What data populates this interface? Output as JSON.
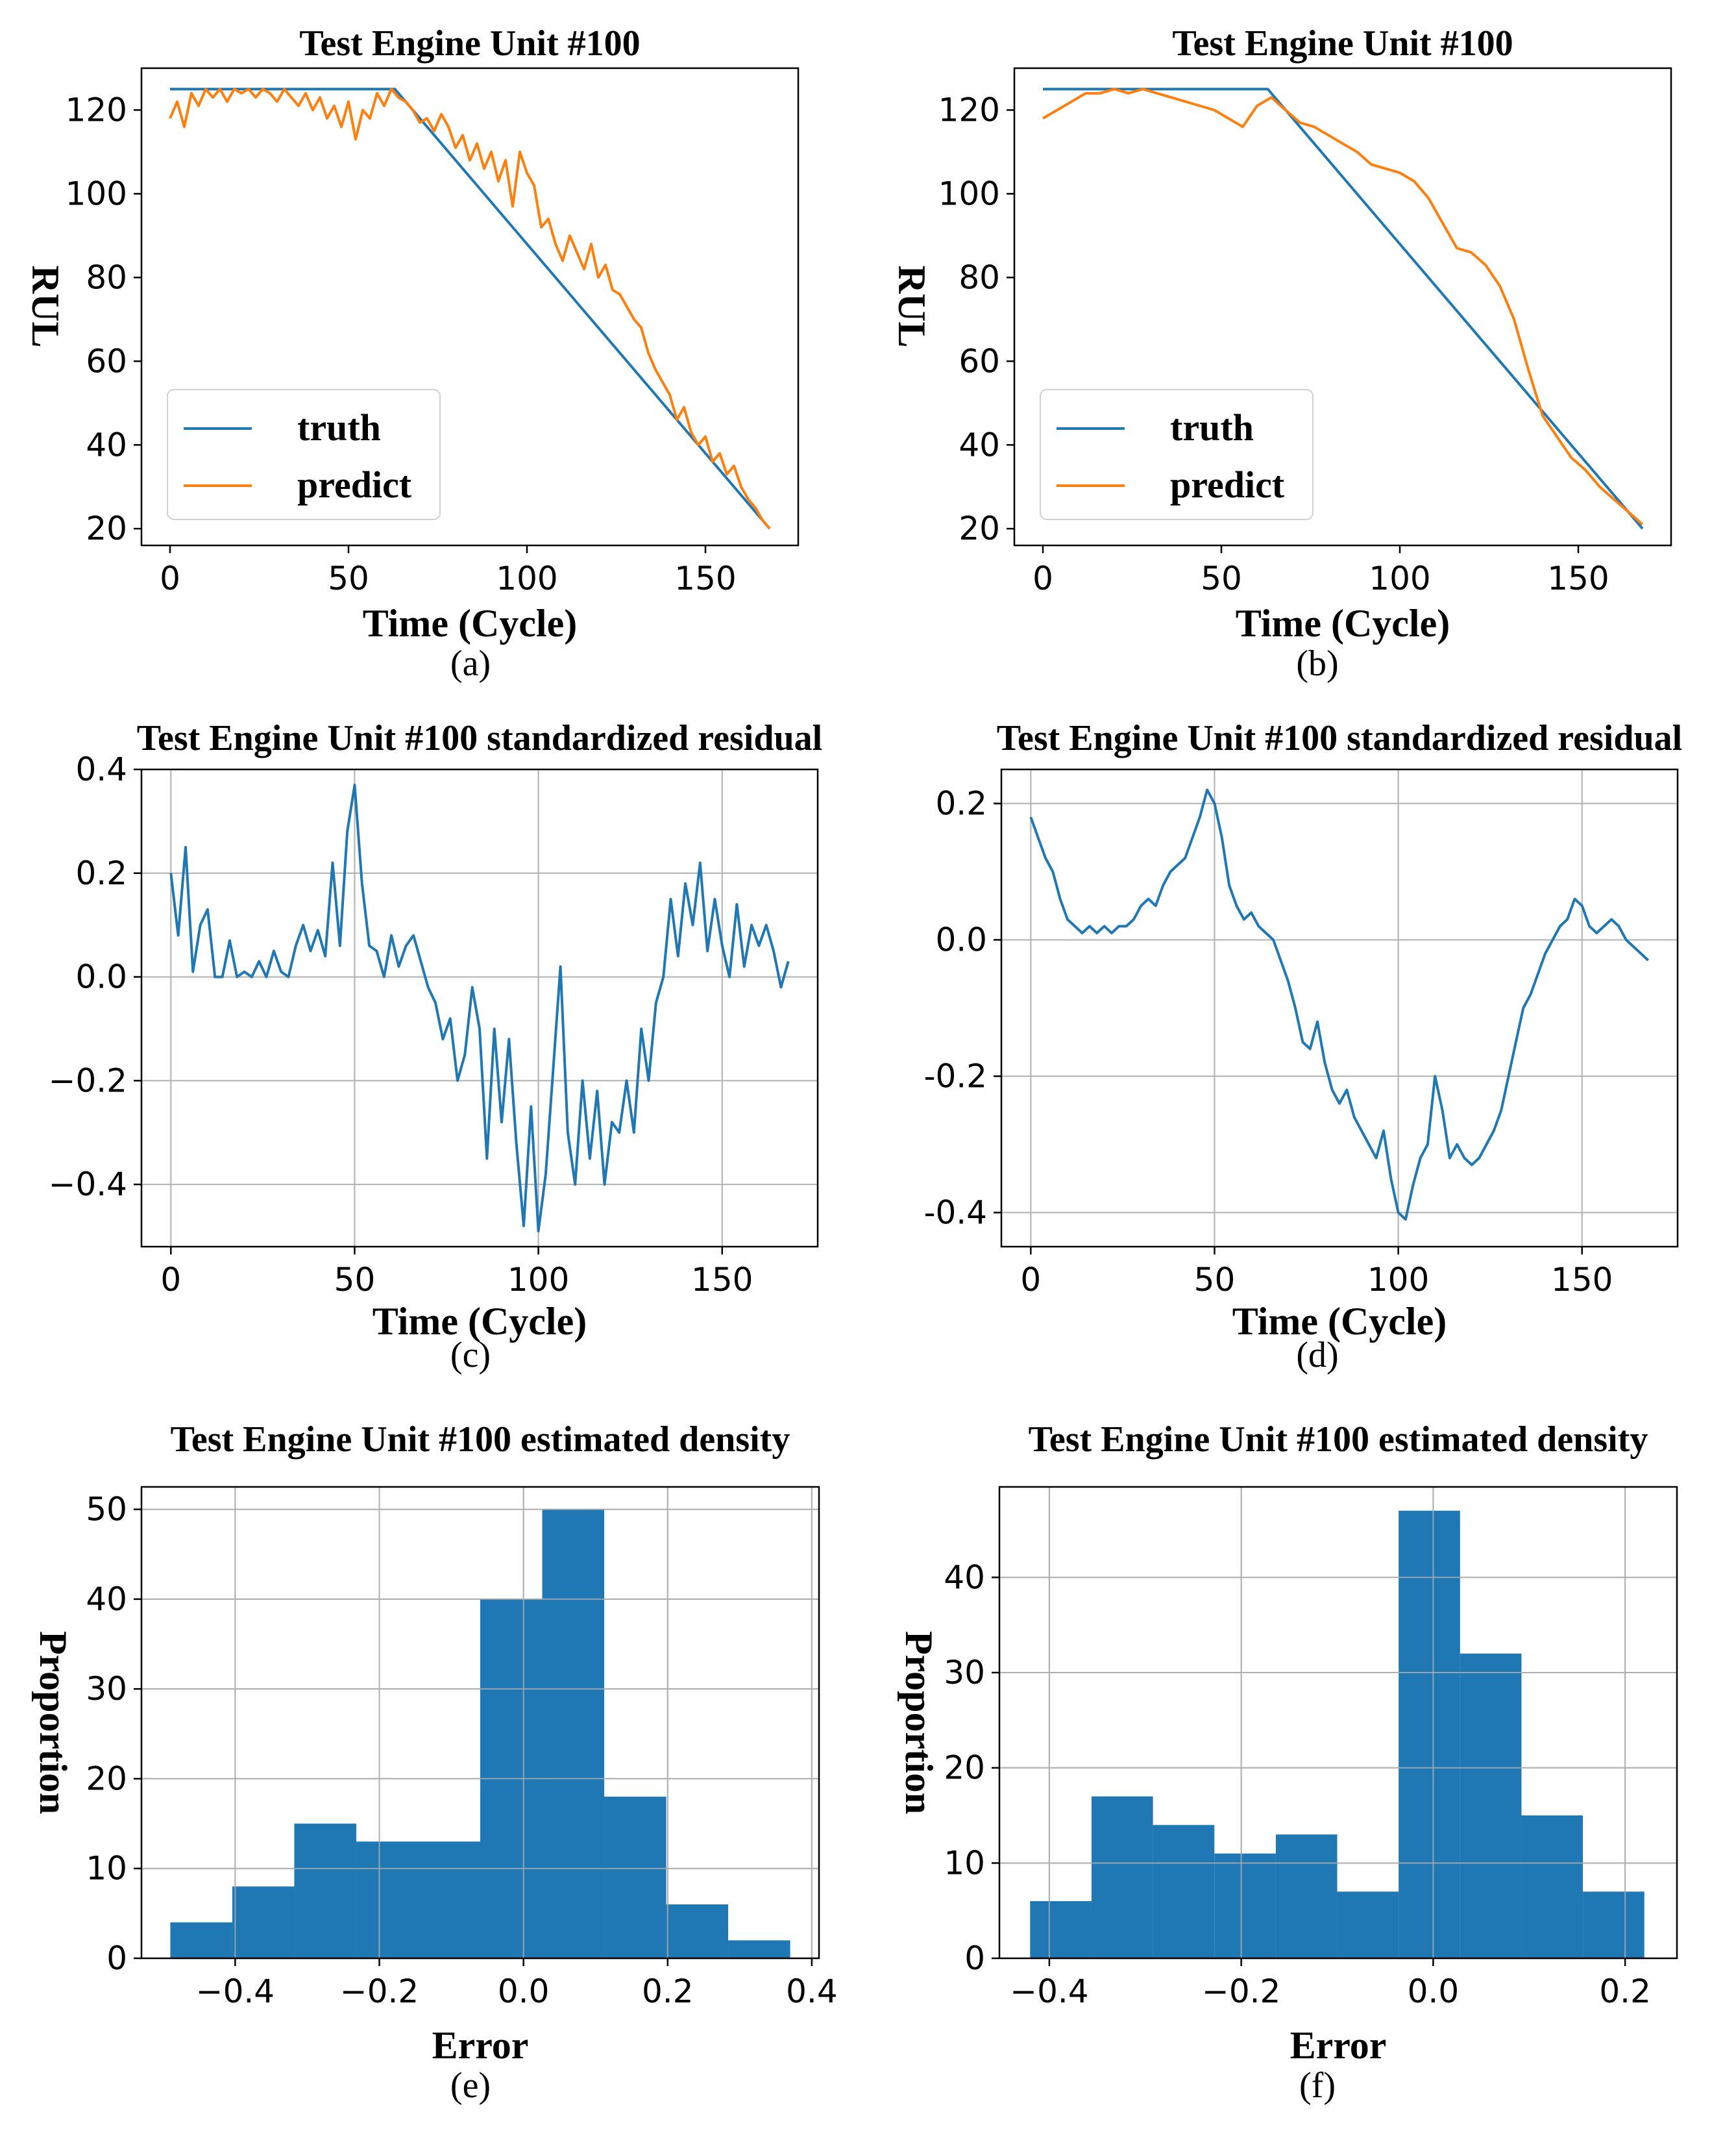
{
  "colors": {
    "truth": "#1f77b4",
    "predict": "#ff7f0e",
    "bar": "#1f77b4",
    "grid": "#b0b0b0",
    "axis": "#000000"
  },
  "chart_data": [
    {
      "id": "a",
      "type": "line",
      "caption": "(a)",
      "title": "Test Engine Unit #100",
      "xlabel": "Time (Cycle)",
      "ylabel": "RUL",
      "xlim": [
        -8,
        176
      ],
      "ylim": [
        16,
        130
      ],
      "grid": false,
      "xticks": [
        0,
        50,
        100,
        150
      ],
      "yticks": [
        20,
        40,
        60,
        80,
        100,
        120
      ],
      "xtick_labels": [
        "0",
        "50",
        "100",
        "150"
      ],
      "ytick_labels": [
        "20",
        "40",
        "60",
        "80",
        "100",
        "120"
      ],
      "legend": {
        "position": "lower-left",
        "entries": [
          "truth",
          "predict"
        ]
      },
      "series": [
        {
          "name": "truth",
          "color": "#1f77b4",
          "x": [
            0,
            63,
            168
          ],
          "y": [
            125,
            125,
            20
          ]
        },
        {
          "name": "predict",
          "color": "#ff7f0e",
          "x": [
            0,
            2,
            4,
            6,
            8,
            10,
            12,
            14,
            16,
            18,
            20,
            22,
            24,
            26,
            28,
            30,
            32,
            34,
            36,
            38,
            40,
            42,
            44,
            46,
            48,
            50,
            52,
            54,
            56,
            58,
            60,
            62,
            64,
            66,
            68,
            70,
            72,
            74,
            76,
            78,
            80,
            82,
            84,
            86,
            88,
            90,
            92,
            94,
            96,
            98,
            100,
            102,
            104,
            106,
            108,
            110,
            112,
            114,
            116,
            118,
            120,
            122,
            124,
            126,
            128,
            130,
            132,
            134,
            136,
            138,
            140,
            142,
            144,
            146,
            148,
            150,
            152,
            154,
            156,
            158,
            160,
            162,
            164,
            166,
            168
          ],
          "y": [
            118,
            122,
            116,
            124,
            121,
            125,
            123,
            125,
            122,
            125,
            124,
            125,
            123,
            125,
            124,
            122,
            125,
            123,
            121,
            124,
            120,
            123,
            118,
            121,
            116,
            122,
            113,
            120,
            118,
            124,
            121,
            125,
            123,
            122,
            120,
            117,
            118,
            115,
            119,
            116,
            111,
            114,
            108,
            112,
            106,
            110,
            103,
            108,
            97,
            110,
            105,
            102,
            92,
            94,
            88,
            84,
            90,
            86,
            82,
            88,
            80,
            83,
            77,
            76,
            73,
            70,
            68,
            62,
            58,
            55,
            52,
            46,
            49,
            43,
            40,
            42,
            36,
            38,
            33,
            35,
            30,
            27,
            25,
            22,
            20
          ]
        }
      ]
    },
    {
      "id": "b",
      "type": "line",
      "caption": "(b)",
      "title": "Test Engine Unit #100",
      "xlabel": "Time (Cycle)",
      "ylabel": "RUL",
      "xlim": [
        -8,
        176
      ],
      "ylim": [
        16,
        130
      ],
      "grid": false,
      "xticks": [
        0,
        50,
        100,
        150
      ],
      "yticks": [
        20,
        40,
        60,
        80,
        100,
        120
      ],
      "xtick_labels": [
        "0",
        "50",
        "100",
        "150"
      ],
      "ytick_labels": [
        "20",
        "40",
        "60",
        "80",
        "100",
        "120"
      ],
      "legend": {
        "position": "lower-left",
        "entries": [
          "truth",
          "predict"
        ]
      },
      "series": [
        {
          "name": "truth",
          "color": "#1f77b4",
          "x": [
            0,
            63,
            168
          ],
          "y": [
            125,
            125,
            20
          ]
        },
        {
          "name": "predict",
          "color": "#ff7f0e",
          "x": [
            0,
            4,
            8,
            12,
            16,
            20,
            24,
            28,
            32,
            36,
            40,
            44,
            48,
            52,
            56,
            60,
            64,
            68,
            72,
            76,
            80,
            84,
            88,
            92,
            96,
            100,
            104,
            108,
            112,
            116,
            120,
            124,
            128,
            132,
            136,
            140,
            144,
            148,
            152,
            156,
            160,
            164,
            168
          ],
          "y": [
            118,
            120,
            122,
            124,
            124,
            125,
            124,
            125,
            124,
            123,
            122,
            121,
            120,
            118,
            116,
            121,
            123,
            120,
            117,
            116,
            114,
            112,
            110,
            107,
            106,
            105,
            103,
            99,
            93,
            87,
            86,
            83,
            78,
            70,
            58,
            47,
            42,
            37,
            34,
            30,
            27,
            24,
            21
          ]
        }
      ]
    },
    {
      "id": "c",
      "type": "line",
      "caption": "(c)",
      "title": "Test Engine Unit #100 standardized residual",
      "xlabel": "Time (Cycle)",
      "ylabel": "",
      "xlim": [
        -8,
        176
      ],
      "ylim": [
        -0.52,
        0.4
      ],
      "grid": true,
      "xticks": [
        0,
        50,
        100,
        150
      ],
      "yticks": [
        -0.4,
        -0.2,
        0.0,
        0.2,
        0.4
      ],
      "xtick_labels": [
        "0",
        "50",
        "100",
        "150"
      ],
      "ytick_labels": [
        "−0.4",
        "−0.2",
        "0.0",
        "0.2",
        "0.4"
      ],
      "series": [
        {
          "name": "residual",
          "color": "#1f77b4",
          "x": [
            0,
            2,
            4,
            6,
            8,
            10,
            12,
            14,
            16,
            18,
            20,
            22,
            24,
            26,
            28,
            30,
            32,
            34,
            36,
            38,
            40,
            42,
            44,
            46,
            48,
            50,
            52,
            54,
            56,
            58,
            60,
            62,
            64,
            66,
            68,
            70,
            72,
            74,
            76,
            78,
            80,
            82,
            84,
            86,
            88,
            90,
            92,
            94,
            96,
            98,
            100,
            102,
            104,
            106,
            108,
            110,
            112,
            114,
            116,
            118,
            120,
            122,
            124,
            126,
            128,
            130,
            132,
            134,
            136,
            138,
            140,
            142,
            144,
            146,
            148,
            150,
            152,
            154,
            156,
            158,
            160,
            162,
            164,
            166,
            168
          ],
          "y": [
            0.2,
            0.08,
            0.25,
            0.01,
            0.1,
            0.13,
            0.0,
            0.0,
            0.07,
            0.0,
            0.01,
            0.0,
            0.03,
            0.0,
            0.05,
            0.01,
            0.0,
            0.06,
            0.1,
            0.05,
            0.09,
            0.04,
            0.22,
            0.06,
            0.28,
            0.37,
            0.18,
            0.06,
            0.05,
            0.0,
            0.08,
            0.02,
            0.06,
            0.08,
            0.03,
            -0.02,
            -0.05,
            -0.12,
            -0.08,
            -0.2,
            -0.15,
            -0.02,
            -0.1,
            -0.35,
            -0.1,
            -0.28,
            -0.12,
            -0.32,
            -0.48,
            -0.25,
            -0.49,
            -0.38,
            -0.18,
            0.02,
            -0.3,
            -0.4,
            -0.2,
            -0.35,
            -0.22,
            -0.4,
            -0.28,
            -0.3,
            -0.2,
            -0.3,
            -0.1,
            -0.2,
            -0.05,
            0.0,
            0.15,
            0.04,
            0.18,
            0.1,
            0.22,
            0.05,
            0.15,
            0.06,
            0.0,
            0.14,
            0.02,
            0.1,
            0.06,
            0.1,
            0.05,
            -0.02,
            0.03
          ]
        }
      ]
    },
    {
      "id": "d",
      "type": "line",
      "caption": "(d)",
      "title": "Test Engine Unit #100 standardized residual",
      "xlabel": "Time (Cycle)",
      "ylabel": "",
      "xlim": [
        -8,
        176
      ],
      "ylim": [
        -0.45,
        0.25
      ],
      "grid": true,
      "xticks": [
        0,
        50,
        100,
        150
      ],
      "yticks": [
        -0.4,
        -0.2,
        0.0,
        0.2
      ],
      "xtick_labels": [
        "0",
        "50",
        "100",
        "150"
      ],
      "ytick_labels": [
        "-0.4",
        "-0.2",
        "0.0",
        "0.2"
      ],
      "series": [
        {
          "name": "residual",
          "color": "#1f77b4",
          "x": [
            0,
            2,
            4,
            6,
            8,
            10,
            12,
            14,
            16,
            18,
            20,
            22,
            24,
            26,
            28,
            30,
            32,
            34,
            36,
            38,
            40,
            42,
            44,
            46,
            48,
            50,
            52,
            54,
            56,
            58,
            60,
            62,
            64,
            66,
            68,
            70,
            72,
            74,
            76,
            78,
            80,
            82,
            84,
            86,
            88,
            90,
            92,
            94,
            96,
            98,
            100,
            102,
            104,
            106,
            108,
            110,
            112,
            114,
            116,
            118,
            120,
            122,
            124,
            126,
            128,
            130,
            132,
            134,
            136,
            138,
            140,
            142,
            144,
            146,
            148,
            150,
            152,
            154,
            156,
            158,
            160,
            162,
            164,
            166,
            168
          ],
          "y": [
            0.18,
            0.15,
            0.12,
            0.1,
            0.06,
            0.03,
            0.02,
            0.01,
            0.02,
            0.01,
            0.02,
            0.01,
            0.02,
            0.02,
            0.03,
            0.05,
            0.06,
            0.05,
            0.08,
            0.1,
            0.11,
            0.12,
            0.15,
            0.18,
            0.22,
            0.2,
            0.15,
            0.08,
            0.05,
            0.03,
            0.04,
            0.02,
            0.01,
            0.0,
            -0.03,
            -0.06,
            -0.1,
            -0.15,
            -0.16,
            -0.12,
            -0.18,
            -0.22,
            -0.24,
            -0.22,
            -0.26,
            -0.28,
            -0.3,
            -0.32,
            -0.28,
            -0.35,
            -0.4,
            -0.41,
            -0.36,
            -0.32,
            -0.3,
            -0.2,
            -0.25,
            -0.32,
            -0.3,
            -0.32,
            -0.33,
            -0.32,
            -0.3,
            -0.28,
            -0.25,
            -0.2,
            -0.15,
            -0.1,
            -0.08,
            -0.05,
            -0.02,
            0.0,
            0.02,
            0.03,
            0.06,
            0.05,
            0.02,
            0.01,
            0.02,
            0.03,
            0.02,
            0.0,
            -0.01,
            -0.02,
            -0.03
          ]
        }
      ]
    },
    {
      "id": "e",
      "type": "bar",
      "caption": "(e)",
      "title": "Test Engine Unit #100 estimated density",
      "xlabel": "Error",
      "ylabel": "Proportion",
      "xlim": [
        -0.53,
        0.41
      ],
      "ylim": [
        0,
        52.5
      ],
      "grid": true,
      "xticks": [
        -0.4,
        -0.2,
        0.0,
        0.2,
        0.4
      ],
      "yticks": [
        0,
        10,
        20,
        30,
        40,
        50
      ],
      "xtick_labels": [
        "−0.4",
        "−0.2",
        "0.0",
        "0.2",
        "0.4"
      ],
      "ytick_labels": [
        "0",
        "10",
        "20",
        "30",
        "40",
        "50"
      ],
      "bin_edges": [
        -0.49,
        -0.404,
        -0.318,
        -0.232,
        -0.146,
        -0.06,
        0.026,
        0.112,
        0.198,
        0.284,
        0.37
      ],
      "values": [
        4,
        8,
        15,
        13,
        13,
        40,
        50,
        18,
        6,
        2
      ]
    },
    {
      "id": "f",
      "type": "bar",
      "caption": "(f)",
      "title": "Test Engine Unit #100 estimated density",
      "xlabel": "Error",
      "ylabel": "Proportion",
      "xlim": [
        -0.452,
        0.254
      ],
      "ylim": [
        0,
        49.5
      ],
      "grid": true,
      "xticks": [
        -0.4,
        -0.2,
        0.0,
        0.2
      ],
      "yticks": [
        0,
        10,
        20,
        30,
        40
      ],
      "xtick_labels": [
        "−0.4",
        "−0.2",
        "0.0",
        "0.2"
      ],
      "ytick_labels": [
        "0",
        "10",
        "20",
        "30",
        "40"
      ],
      "bin_edges": [
        -0.42,
        -0.356,
        -0.292,
        -0.228,
        -0.164,
        -0.1,
        -0.036,
        0.028,
        0.092,
        0.156,
        0.22
      ],
      "values": [
        6,
        17,
        14,
        11,
        13,
        7,
        47,
        32,
        15,
        7
      ]
    }
  ]
}
